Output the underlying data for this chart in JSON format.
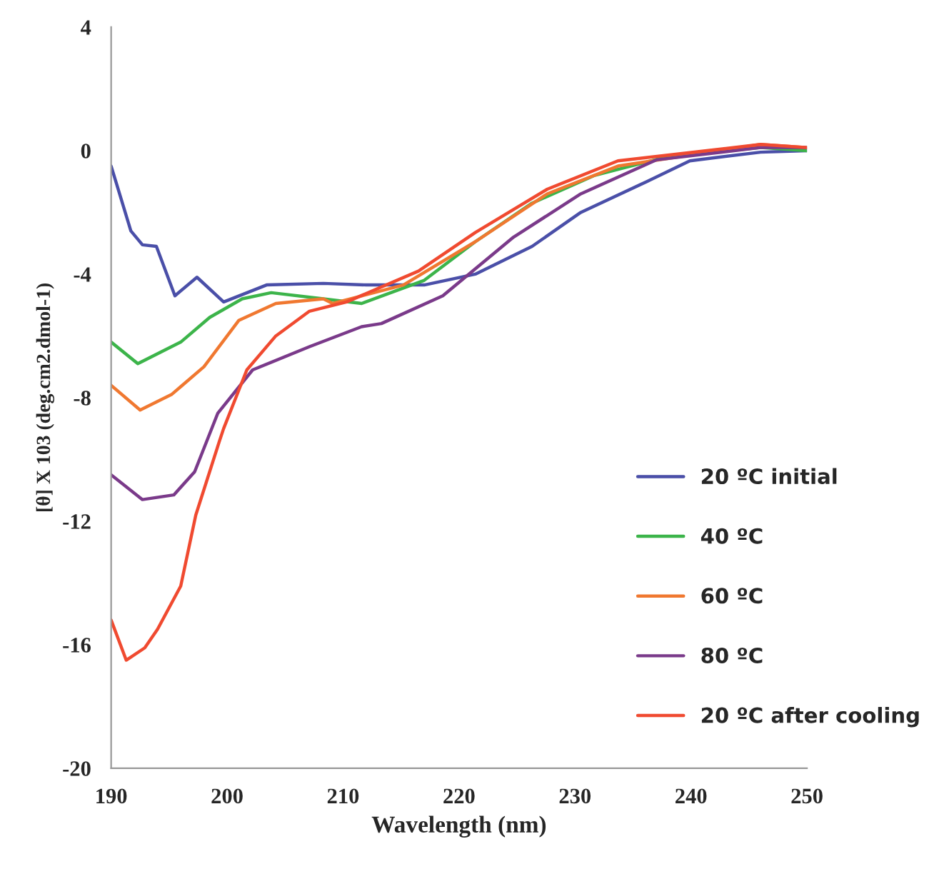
{
  "chart_data": {
    "type": "line",
    "xlabel": "Wavelength (nm)",
    "ylabel": "[θ] X 103 (deg.cm2.dmol-1)",
    "xlim": [
      190,
      250
    ],
    "xticks": [
      190,
      200,
      210,
      220,
      230,
      240,
      250
    ],
    "ylim": [
      -20,
      4
    ],
    "yticks": [
      -20,
      -16,
      -12,
      -8,
      -4,
      0,
      4
    ],
    "grid": false,
    "legend": "lower right",
    "series": [
      {
        "name": "20 ºC initial",
        "color": "#4a4fa8",
        "x": [
          190,
          191.7,
          192.7,
          193.9,
          195.5,
          197.4,
          199.7,
          203.4,
          208.3,
          212,
          217,
          221.4,
          226.3,
          230.5,
          236.2,
          239.9,
          246,
          250
        ],
        "values": [
          -0.5,
          -2.6,
          -3.05,
          -3.1,
          -4.7,
          -4.1,
          -4.9,
          -4.35,
          -4.3,
          -4.35,
          -4.35,
          -4.0,
          -3.1,
          -2.0,
          -1.0,
          -0.33,
          -0.05,
          0
        ]
      },
      {
        "name": "40 ºC",
        "color": "#3cb44a",
        "x": [
          190,
          192.3,
          196,
          198.5,
          201.3,
          203.8,
          208.3,
          211.6,
          217,
          221.4,
          226.3,
          231.7,
          237.9,
          246,
          250
        ],
        "values": [
          -6.2,
          -6.9,
          -6.2,
          -5.4,
          -4.8,
          -4.6,
          -4.8,
          -4.95,
          -4.2,
          -2.95,
          -1.7,
          -0.8,
          -0.2,
          0.1,
          0
        ]
      },
      {
        "name": "60 ºC",
        "color": "#f07830",
        "x": [
          190,
          192.5,
          195.2,
          198,
          201,
          204.2,
          208.3,
          209.1,
          215.2,
          221.4,
          227.6,
          233.7,
          246,
          250
        ],
        "values": [
          -7.6,
          -8.4,
          -7.9,
          -7.0,
          -5.5,
          -4.95,
          -4.8,
          -4.95,
          -4.35,
          -2.95,
          -1.4,
          -0.5,
          0.2,
          0.1
        ]
      },
      {
        "name": "80 ºC",
        "color": "#7a3a8a",
        "x": [
          190,
          192.7,
          195.4,
          197.2,
          199.2,
          202.2,
          207.1,
          211.6,
          213.3,
          218.6,
          224.7,
          230.5,
          237,
          246,
          250
        ],
        "values": [
          -10.5,
          -11.3,
          -11.15,
          -10.4,
          -8.5,
          -7.1,
          -6.35,
          -5.7,
          -5.6,
          -4.7,
          -2.8,
          -1.4,
          -0.3,
          0.1,
          0.1
        ]
      },
      {
        "name": "20 ºC after cooling",
        "color": "#f04a30",
        "x": [
          190,
          191.3,
          192.9,
          194,
          196,
          197.3,
          199.3,
          199.7,
          201.7,
          204.2,
          207.1,
          210.3,
          216.5,
          221.4,
          227.6,
          233.7,
          246,
          250
        ],
        "values": [
          -15.2,
          -16.5,
          -16.1,
          -15.5,
          -14.1,
          -11.8,
          -9.45,
          -9.0,
          -7.1,
          -6.0,
          -5.2,
          -4.9,
          -3.9,
          -2.65,
          -1.25,
          -0.33,
          0.2,
          0.1
        ]
      }
    ]
  }
}
